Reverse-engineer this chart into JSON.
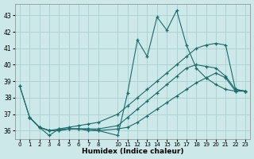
{
  "xlabel": "Humidex (Indice chaleur)",
  "ylabel": "",
  "bg_color": "#cce8e8",
  "line_color": "#1a6b6b",
  "grid_color": "#aacece",
  "xlim": [
    -0.5,
    23.5
  ],
  "ylim": [
    35.5,
    43.7
  ],
  "yticks": [
    36,
    37,
    38,
    39,
    40,
    41,
    42,
    43
  ],
  "xticks": [
    0,
    1,
    2,
    3,
    4,
    5,
    6,
    7,
    8,
    10,
    11,
    12,
    13,
    14,
    15,
    16,
    17,
    18,
    19,
    20,
    21,
    22,
    23
  ],
  "lines": [
    {
      "x": [
        0,
        1,
        2,
        3,
        4,
        5,
        6,
        7,
        8,
        10,
        11,
        12,
        13,
        14,
        15,
        16,
        17,
        18,
        19,
        20,
        21,
        22,
        23
      ],
      "y": [
        38.7,
        36.8,
        36.2,
        35.7,
        36.1,
        36.1,
        36.1,
        36.1,
        36.0,
        35.7,
        38.3,
        41.5,
        40.5,
        42.9,
        42.1,
        43.3,
        41.2,
        39.8,
        39.2,
        38.8,
        38.5,
        38.4,
        38.4
      ]
    },
    {
      "x": [
        0,
        1,
        2,
        3,
        4,
        5,
        6,
        7,
        8,
        10,
        11,
        12,
        13,
        14,
        15,
        16,
        17,
        18,
        19,
        20,
        21,
        22,
        23
      ],
      "y": [
        38.7,
        36.8,
        36.2,
        36.0,
        36.1,
        36.2,
        36.3,
        36.4,
        36.5,
        37.0,
        37.5,
        38.0,
        38.5,
        39.0,
        39.5,
        40.0,
        40.5,
        41.0,
        41.2,
        41.3,
        41.2,
        38.5,
        38.4
      ]
    },
    {
      "x": [
        1,
        2,
        3,
        4,
        5,
        6,
        7,
        8,
        10,
        11,
        12,
        13,
        14,
        15,
        16,
        17,
        18,
        19,
        20,
        21,
        22,
        23
      ],
      "y": [
        36.8,
        36.2,
        36.0,
        36.0,
        36.1,
        36.1,
        36.1,
        36.1,
        36.3,
        36.8,
        37.3,
        37.8,
        38.3,
        38.8,
        39.3,
        39.8,
        40.0,
        39.9,
        39.8,
        39.3,
        38.5,
        38.4
      ]
    },
    {
      "x": [
        1,
        2,
        3,
        4,
        5,
        6,
        7,
        8,
        10,
        11,
        12,
        13,
        14,
        15,
        16,
        17,
        18,
        19,
        20,
        21,
        22,
        23
      ],
      "y": [
        36.8,
        36.2,
        36.0,
        36.0,
        36.1,
        36.1,
        36.0,
        36.0,
        36.1,
        36.2,
        36.5,
        36.9,
        37.3,
        37.7,
        38.1,
        38.5,
        38.9,
        39.2,
        39.5,
        39.2,
        38.4,
        38.4
      ]
    }
  ]
}
